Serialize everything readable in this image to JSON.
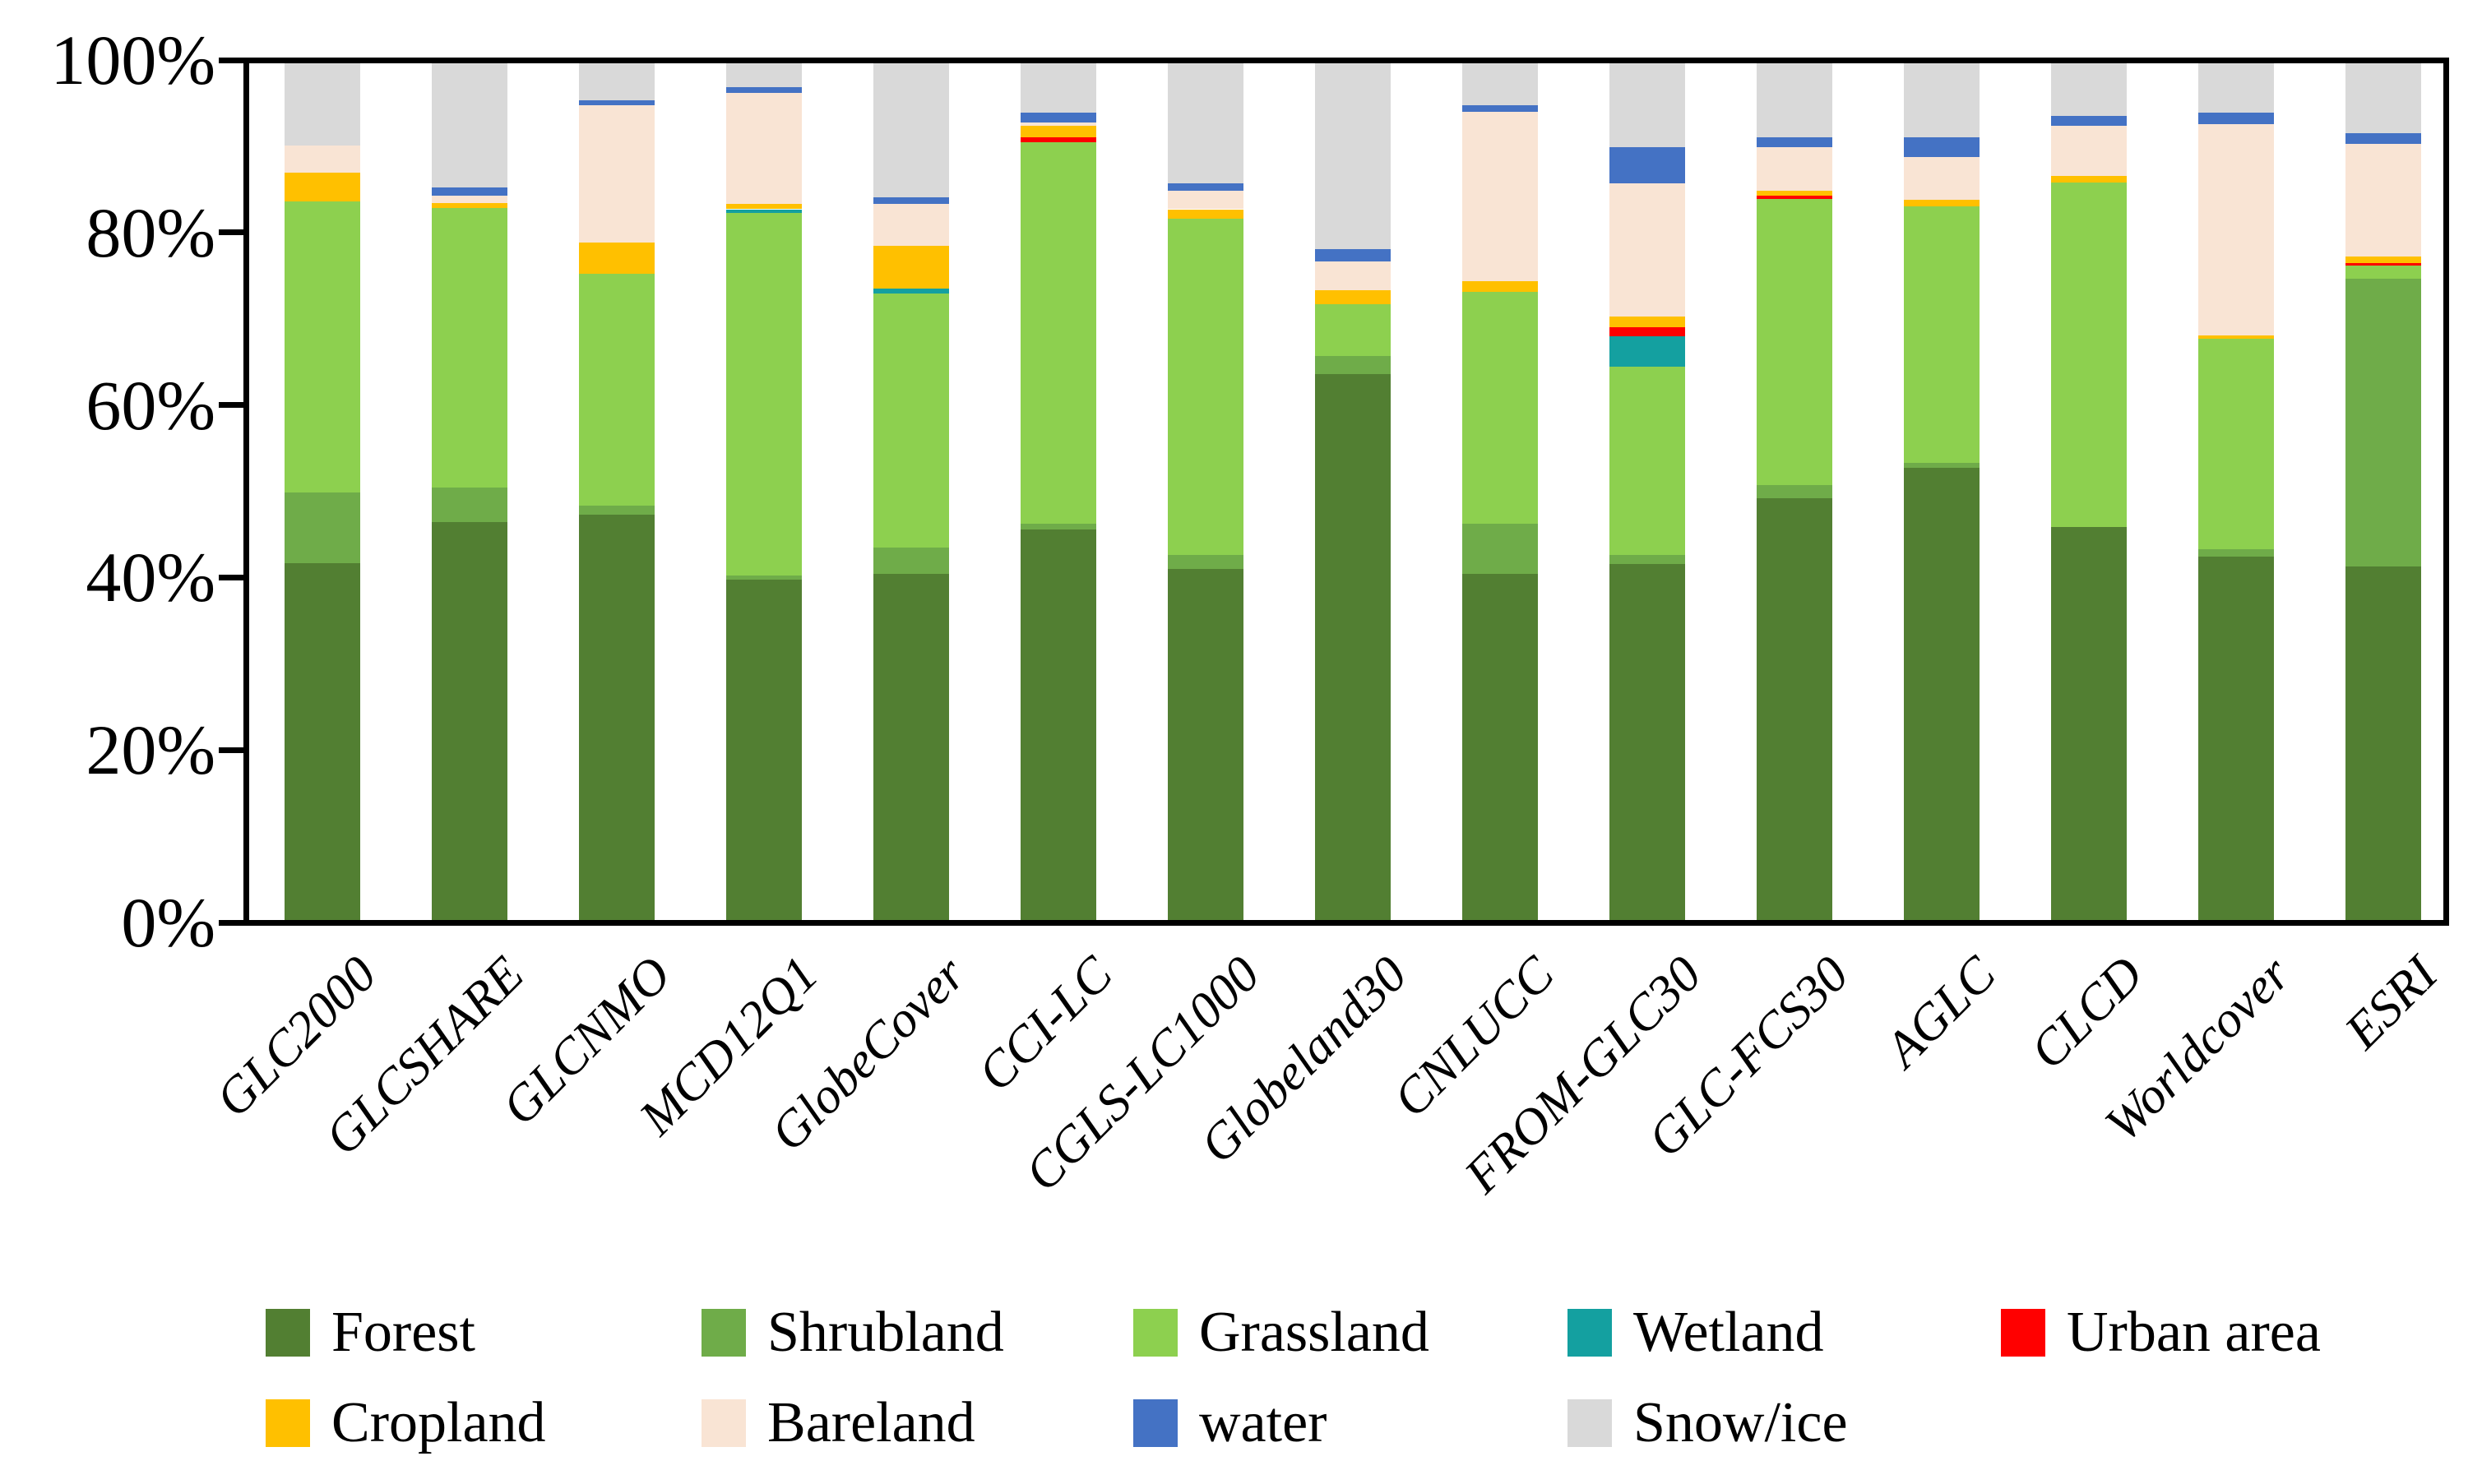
{
  "figure_title": "",
  "y_axis": {
    "tick_labels": [
      "100%",
      "80%",
      "60%",
      "40%",
      "20%",
      "0%"
    ],
    "tick_values": [
      100,
      80,
      60,
      40,
      20,
      0
    ]
  },
  "legend": {
    "rows": [
      [
        0,
        1,
        2,
        3,
        4
      ],
      [
        5,
        6,
        7,
        8
      ]
    ]
  },
  "chart_data": {
    "type": "bar",
    "stacked": true,
    "title": "",
    "xlabel": "",
    "ylabel": "",
    "ylim": [
      0,
      100
    ],
    "yticks": [
      0,
      20,
      40,
      60,
      80,
      100
    ],
    "ytick_format": "percent",
    "grid": false,
    "legend_position": "bottom",
    "categories": [
      "GLC2000",
      "GLCSHARE",
      "GLCNMO",
      "MCD12Q1",
      "GlobeCover",
      "CCI-LC",
      "CGLS-LC1000",
      "Globeland30",
      "CNLUCC",
      "FROM-GLC30",
      "GLC-FCS30",
      "AGLC",
      "CLCD",
      "Worldcover",
      "ESRI"
    ],
    "series": [
      {
        "name": "Forest",
        "color": "#527F32",
        "values": [
          41.7,
          46.4,
          47.3,
          39.8,
          40.4,
          45.6,
          41.0,
          63.6,
          40.4,
          41.6,
          49.2,
          52.7,
          45.9,
          42.4,
          41.3
        ]
      },
      {
        "name": "Shrubland",
        "color": "#6FAC49",
        "values": [
          8.2,
          4.0,
          1.0,
          0.4,
          3.1,
          0.6,
          1.6,
          2.1,
          5.8,
          1.0,
          1.5,
          0.6,
          0,
          0.9,
          33.3
        ]
      },
      {
        "name": "Grassland",
        "color": "#8DD04F",
        "values": [
          33.7,
          32.4,
          26.9,
          42.1,
          29.4,
          44.3,
          39.0,
          6.0,
          26.9,
          21.8,
          33.2,
          29.7,
          39.9,
          24.4,
          1.6
        ]
      },
      {
        "name": "Wetland",
        "color": "#14A0A0",
        "values": [
          0,
          0,
          0,
          0.4,
          0.6,
          0,
          0,
          0,
          0,
          3.6,
          0,
          0,
          0,
          0,
          0
        ]
      },
      {
        "name": "Urban area",
        "color": "#FF0000",
        "values": [
          0,
          0,
          0,
          0,
          0,
          0.5,
          0,
          0,
          0,
          1.0,
          0.4,
          0,
          0,
          0,
          0.3
        ]
      },
      {
        "name": "Cropland",
        "color": "#FFC000",
        "values": [
          3.3,
          0.6,
          3.6,
          0.6,
          5.0,
          1.4,
          1.1,
          1.6,
          1.3,
          1.3,
          0.5,
          0.8,
          0.8,
          0.4,
          0.7
        ]
      },
      {
        "name": "Bareland",
        "color": "#F9E4D4",
        "values": [
          3.2,
          0.9,
          16.0,
          12.9,
          4.8,
          0.4,
          2.1,
          3.3,
          19.6,
          15.4,
          5.1,
          5.0,
          5.8,
          24.5,
          13.1
        ]
      },
      {
        "name": "water",
        "color": "#4472C4",
        "values": [
          0,
          0.9,
          0.5,
          0.7,
          0.8,
          1.1,
          0.9,
          1.5,
          0.8,
          4.2,
          1.1,
          2.2,
          1.1,
          1.3,
          1.2
        ]
      },
      {
        "name": "Snow/ice",
        "color": "#D9D9D9",
        "values": [
          9.9,
          14.8,
          4.7,
          3.1,
          15.9,
          6.1,
          14.3,
          21.9,
          5.2,
          10.1,
          9.0,
          9.0,
          6.5,
          6.1,
          8.5
        ]
      }
    ]
  }
}
